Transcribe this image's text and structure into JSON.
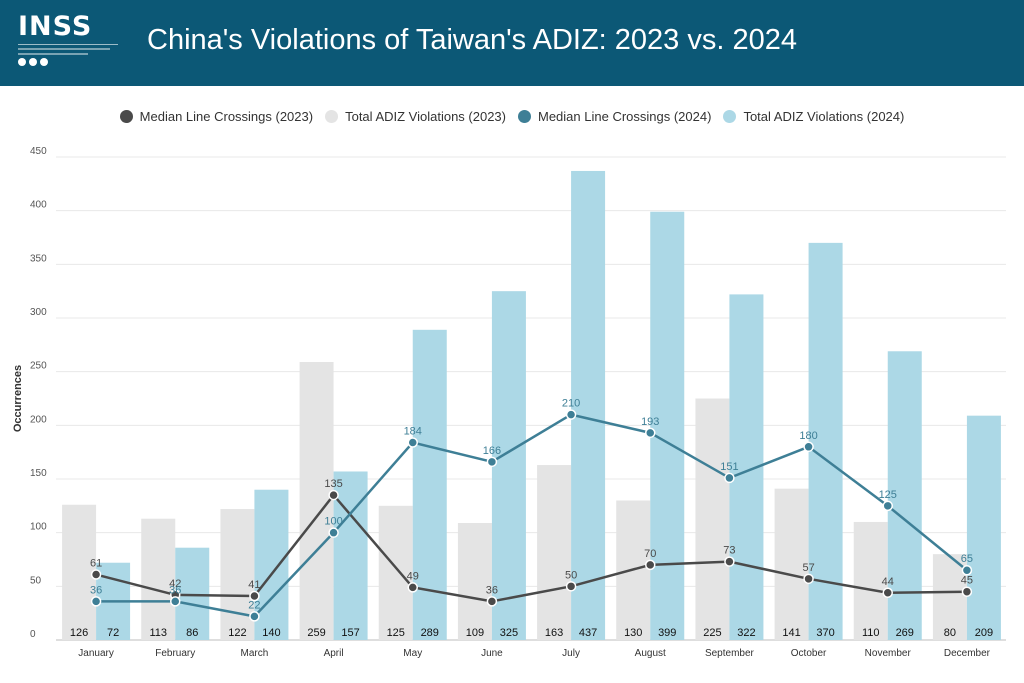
{
  "header": {
    "logo_text": "INSS",
    "title": "China's Violations of Taiwan's ADIZ: 2023 vs. 2024"
  },
  "colors": {
    "header_bg": "#0c5876",
    "median_2023": "#4a4a4a",
    "total_2023": "#e4e4e4",
    "median_2024": "#3e7f96",
    "total_2024": "#acd8e6"
  },
  "chart_data": {
    "type": "bar",
    "title": "China's Violations of Taiwan's ADIZ: 2023 vs. 2024",
    "xlabel": "",
    "ylabel": "Occurrences",
    "ylim": [
      0,
      450
    ],
    "yticks": [
      0,
      50,
      100,
      150,
      200,
      250,
      300,
      350,
      400,
      450
    ],
    "grid": true,
    "legend_position": "top",
    "categories": [
      "January",
      "February",
      "March",
      "April",
      "May",
      "June",
      "July",
      "August",
      "September",
      "October",
      "November",
      "December"
    ],
    "series": [
      {
        "name": "Median Line Crossings (2023)",
        "kind": "line",
        "color": "#4a4a4a",
        "values": [
          61,
          42,
          41,
          135,
          49,
          36,
          50,
          70,
          73,
          57,
          44,
          45
        ]
      },
      {
        "name": "Total ADIZ Violations (2023)",
        "kind": "bar",
        "color": "#e4e4e4",
        "values": [
          126,
          113,
          122,
          259,
          125,
          109,
          163,
          130,
          225,
          141,
          110,
          80
        ]
      },
      {
        "name": "Median Line Crossings (2024)",
        "kind": "line",
        "color": "#3e7f96",
        "values": [
          36,
          36,
          22,
          100,
          184,
          166,
          210,
          193,
          151,
          180,
          125,
          65
        ]
      },
      {
        "name": "Total ADIZ Violations (2024)",
        "kind": "bar",
        "color": "#acd8e6",
        "values": [
          72,
          86,
          140,
          157,
          289,
          325,
          437,
          399,
          322,
          370,
          269,
          209
        ]
      }
    ]
  }
}
